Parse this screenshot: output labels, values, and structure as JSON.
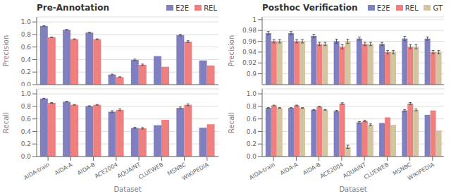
{
  "chart_data": [
    {
      "type": "bar",
      "title": "Pre-Annotation",
      "ylabel": "Precision",
      "categories": [
        "AIDA-train",
        "AIDA-A",
        "AIDA-B",
        "ACE2004",
        "AQUAINT",
        "CLUEWEB",
        "MSNBC",
        "WIKIPEDIA"
      ],
      "series": [
        {
          "name": "E2E",
          "color": "#8080c0",
          "values": [
            0.935,
            0.875,
            0.83,
            0.16,
            0.395,
            0.455,
            0.79,
            0.385
          ],
          "errors": [
            0.005,
            0.005,
            0.005,
            0.008,
            0.012,
            0.0,
            0.015,
            0.0
          ]
        },
        {
          "name": "REL",
          "color": "#f08080",
          "values": [
            0.755,
            0.725,
            0.725,
            0.12,
            0.315,
            0.285,
            0.685,
            0.305
          ],
          "errors": [
            0.005,
            0.005,
            0.005,
            0.005,
            0.012,
            0.0,
            0.015,
            0.0
          ]
        }
      ],
      "ylim": [
        0,
        1.08
      ],
      "yticks": [
        {
          "value": 0,
          "label": "0.0"
        },
        0.2,
        0.4,
        0.6,
        0.8,
        {
          "value": 1.0,
          "label": "1.0"
        }
      ],
      "grid": true,
      "legend": "upper right",
      "tick_labels": "y"
    },
    {
      "type": "bar",
      "ylabel": "Recall",
      "xlabel": "Dataset",
      "categories": [
        "AIDA-train",
        "AIDA-A",
        "AIDA-B",
        "ACE2004",
        "AQUAINT",
        "CLUEWEB",
        "MSNBC",
        "WIKIPEDIA"
      ],
      "series": [
        {
          "name": "E2E",
          "color": "#8080c0",
          "values": [
            0.925,
            0.875,
            0.805,
            0.715,
            0.455,
            0.5,
            0.775,
            0.46
          ],
          "errors": [
            0.005,
            0.005,
            0.005,
            0.015,
            0.012,
            0.0,
            0.015,
            0.0
          ]
        },
        {
          "name": "REL",
          "color": "#f08080",
          "values": [
            0.855,
            0.825,
            0.825,
            0.745,
            0.45,
            0.585,
            0.825,
            0.515
          ],
          "errors": [
            0.005,
            0.005,
            0.005,
            0.015,
            0.012,
            0.0,
            0.015,
            0.0
          ]
        }
      ],
      "ylim": [
        0,
        1.08
      ],
      "yticks": [
        {
          "value": 0,
          "label": "0.0"
        },
        0.2,
        0.4,
        0.6,
        0.8,
        {
          "value": 1.0,
          "label": "1.0"
        }
      ],
      "grid": true
    },
    {
      "type": "bar",
      "title": "Posthoc Verification",
      "ylabel": "Precision",
      "categories": [
        "AIDA-train",
        "AIDA-A",
        "AIDA-B",
        "ACE2004",
        "AQUAINT",
        "CLUEWEB",
        "MSNBC",
        "WIKIPEDIA"
      ],
      "series": [
        {
          "name": "E2E",
          "color": "#8080c0",
          "values": [
            0.975,
            0.975,
            0.97,
            0.96,
            0.965,
            0.955,
            0.965,
            0.965
          ],
          "errors": [
            0.003,
            0.003,
            0.003,
            0.004,
            0.003,
            0.003,
            0.004,
            0.003
          ]
        },
        {
          "name": "REL",
          "color": "#f08080",
          "values": [
            0.96,
            0.96,
            0.955,
            0.95,
            0.955,
            0.94,
            0.95,
            0.94
          ],
          "errors": [
            0.003,
            0.003,
            0.003,
            0.004,
            0.003,
            0.003,
            0.004,
            0.003
          ]
        },
        {
          "name": "GT",
          "color": "#d4c4a0",
          "values": [
            0.96,
            0.96,
            0.955,
            0.96,
            0.955,
            0.94,
            0.95,
            0.94
          ],
          "errors": [
            0.003,
            0.003,
            0.003,
            0.004,
            0.003,
            0.003,
            0.004,
            0.003
          ]
        }
      ],
      "ylim": [
        0.88,
        1.005
      ],
      "yticks": [
        0.9,
        0.92,
        0.94,
        0.96,
        0.98,
        1
      ],
      "grid": true,
      "legend": "upper right",
      "tick_labels": "y"
    },
    {
      "type": "bar",
      "ylabel": "Recall",
      "xlabel": "Dataset",
      "categories": [
        "AIDA-train",
        "AIDA-A",
        "AIDA-B",
        "ACE2004",
        "AQUAINT",
        "CLUEWEB",
        "MSNBC",
        "WIKIPEDIA"
      ],
      "series": [
        {
          "name": "E2E",
          "color": "#8080c0",
          "values": [
            0.775,
            0.775,
            0.745,
            0.725,
            0.545,
            0.535,
            0.735,
            0.665
          ],
          "errors": [
            0.005,
            0.005,
            0.005,
            0.012,
            0.012,
            0.0,
            0.015,
            0.0
          ]
        },
        {
          "name": "REL",
          "color": "#f08080",
          "values": [
            0.815,
            0.815,
            0.795,
            0.845,
            0.565,
            0.625,
            0.845,
            0.735
          ],
          "errors": [
            0.005,
            0.005,
            0.005,
            0.012,
            0.012,
            0.0,
            0.015,
            0.0
          ]
        },
        {
          "name": "GT",
          "color": "#d4c4a0",
          "values": [
            0.775,
            0.775,
            0.745,
            0.155,
            0.505,
            0.505,
            0.745,
            0.415
          ],
          "errors": [
            0.005,
            0.005,
            0.005,
            0.025,
            0.015,
            0.0,
            0.015,
            0.0
          ]
        }
      ],
      "ylim": [
        0,
        1.08
      ],
      "yticks": [
        {
          "value": 0,
          "label": "0.0"
        },
        0.2,
        0.4,
        0.6,
        0.8,
        {
          "value": 1.0,
          "label": "1.0"
        }
      ],
      "grid": true
    }
  ]
}
